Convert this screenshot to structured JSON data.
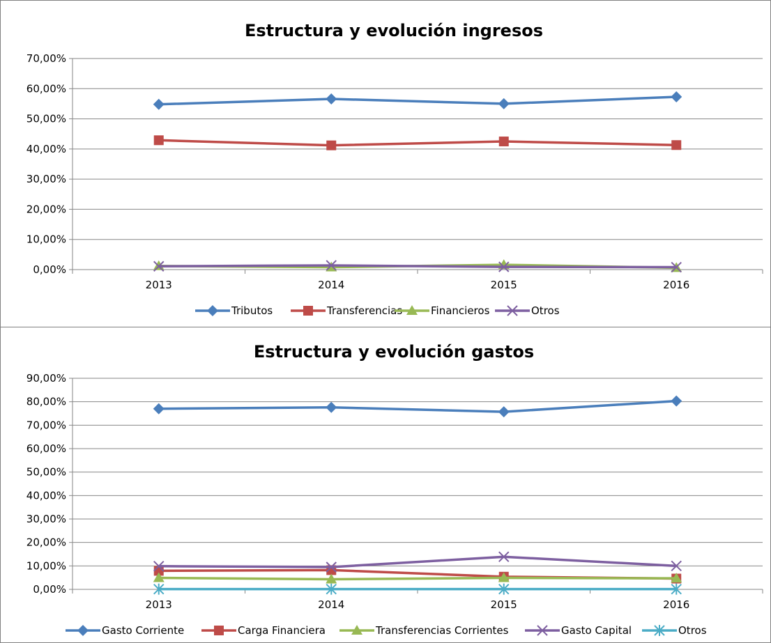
{
  "chart_data": [
    {
      "type": "line",
      "title": "Estructura y evolución ingresos",
      "categories": [
        "2013",
        "2014",
        "2015",
        "2016"
      ],
      "ylim": [
        0,
        70
      ],
      "y_tick_values": [
        0,
        10,
        20,
        30,
        40,
        50,
        60,
        70
      ],
      "y_tick_labels": [
        "0,00%",
        "10,00%",
        "20,00%",
        "30,00%",
        "40,00%",
        "50,00%",
        "60,00%",
        "70,00%"
      ],
      "grid": true,
      "legend_position": "bottom",
      "series": [
        {
          "name": "Tributos",
          "values": [
            54.8,
            56.6,
            55.0,
            57.3
          ],
          "color": "#4a7ebb",
          "marker": "diamond"
        },
        {
          "name": "Transferencias",
          "values": [
            42.9,
            41.2,
            42.5,
            41.3
          ],
          "color": "#be4b48",
          "marker": "square"
        },
        {
          "name": "Financieros",
          "values": [
            1.2,
            0.8,
            1.6,
            0.6
          ],
          "color": "#98b954",
          "marker": "triangle"
        },
        {
          "name": "Otros",
          "values": [
            1.1,
            1.4,
            0.9,
            0.8
          ],
          "color": "#7d5fa0",
          "marker": "x"
        }
      ]
    },
    {
      "type": "line",
      "title": "Estructura y evolución gastos",
      "categories": [
        "2013",
        "2014",
        "2015",
        "2016"
      ],
      "ylim": [
        0,
        90
      ],
      "y_tick_values": [
        0,
        10,
        20,
        30,
        40,
        50,
        60,
        70,
        80,
        90
      ],
      "y_tick_labels": [
        "0,00%",
        "10,00%",
        "20,00%",
        "30,00%",
        "40,00%",
        "50,00%",
        "60,00%",
        "70,00%",
        "80,00%",
        "90,00%"
      ],
      "grid": true,
      "legend_position": "bottom",
      "series": [
        {
          "name": "Gasto Corriente",
          "values": [
            77.0,
            77.6,
            75.7,
            80.3
          ],
          "color": "#4a7ebb",
          "marker": "diamond"
        },
        {
          "name": "Carga Financiera",
          "values": [
            7.9,
            8.2,
            5.4,
            4.6
          ],
          "color": "#be4b48",
          "marker": "square"
        },
        {
          "name": "Transferencias Corrientes",
          "values": [
            4.9,
            4.3,
            4.9,
            4.7
          ],
          "color": "#98b954",
          "marker": "triangle"
        },
        {
          "name": "Gasto Capital",
          "values": [
            9.9,
            9.5,
            13.9,
            10.0
          ],
          "color": "#7d5fa0",
          "marker": "x"
        },
        {
          "name": "Otros",
          "values": [
            0.1,
            0.1,
            0.1,
            0.1
          ],
          "color": "#4bacc6",
          "marker": "star"
        }
      ]
    }
  ]
}
